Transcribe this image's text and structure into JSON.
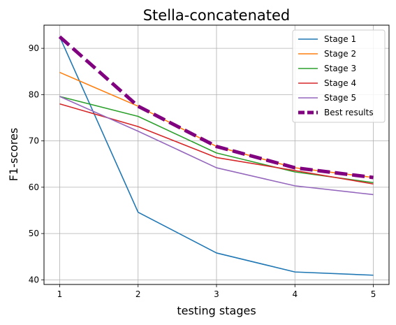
{
  "chart_data": {
    "type": "line",
    "title": "Stella-concatenated",
    "xlabel": "testing stages",
    "ylabel": "F1-scores",
    "x": [
      1,
      2,
      3,
      4,
      5
    ],
    "xticks": [
      "1",
      "2",
      "3",
      "4",
      "5"
    ],
    "yticks": [
      40,
      50,
      60,
      70,
      80,
      90
    ],
    "xlim": [
      0.8,
      5.2
    ],
    "ylim": [
      39.0,
      95.0
    ],
    "grid": true,
    "legend_position": "top-right",
    "series": [
      {
        "name": "Stage 1",
        "color": "#1f77b4",
        "style": "solid",
        "values": [
          92.5,
          54.6,
          45.8,
          41.7,
          41.0
        ]
      },
      {
        "name": "Stage 2",
        "color": "#ff7f0e",
        "style": "solid",
        "values": [
          84.8,
          77.5,
          68.8,
          64.2,
          62.1
        ]
      },
      {
        "name": "Stage 3",
        "color": "#2ca02c",
        "style": "solid",
        "values": [
          79.6,
          75.3,
          67.4,
          63.3,
          61.0
        ]
      },
      {
        "name": "Stage 4",
        "color": "#d62728",
        "style": "solid",
        "values": [
          78.0,
          73.1,
          66.4,
          63.6,
          60.7
        ]
      },
      {
        "name": "Stage 5",
        "color": "#9467bd",
        "style": "solid",
        "values": [
          79.6,
          72.1,
          64.2,
          60.3,
          58.4
        ]
      },
      {
        "name": "Best results",
        "color": "#800080",
        "style": "dashed",
        "values": [
          92.5,
          77.5,
          68.8,
          64.2,
          62.1
        ]
      }
    ]
  }
}
